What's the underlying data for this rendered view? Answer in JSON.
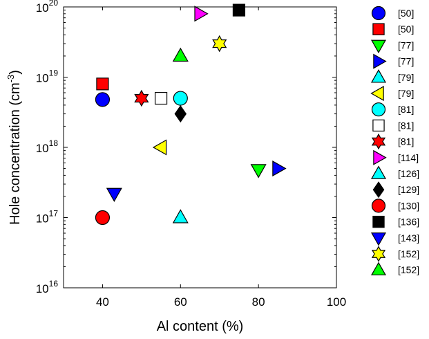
{
  "chart_data": {
    "type": "scatter",
    "title": "",
    "xlabel": "Al content (%)",
    "ylabel": {
      "text": "Hole concentration (cm",
      "superscript": "-3",
      "suffix": ")"
    },
    "xlim": [
      30,
      100
    ],
    "ylim": [
      1e+16,
      1e+20
    ],
    "yscale": "log",
    "grid": false,
    "legend_position": "right",
    "x_ticks": [
      {
        "value": 40,
        "label": "40"
      },
      {
        "value": 60,
        "label": "60"
      },
      {
        "value": 80,
        "label": "80"
      },
      {
        "value": 100,
        "label": "100"
      }
    ],
    "y_ticks": [
      {
        "value": 1e+16,
        "base": "10",
        "exp": "16"
      },
      {
        "value": 1e+17,
        "base": "10",
        "exp": "17"
      },
      {
        "value": 1e+18,
        "base": "10",
        "exp": "18"
      },
      {
        "value": 1e+19,
        "base": "10",
        "exp": "19"
      },
      {
        "value": 1e+20,
        "base": "10",
        "exp": "20"
      }
    ],
    "series": [
      {
        "name": "[50]",
        "marker": "circle",
        "color": "#0000ff",
        "points": [
          [
            40,
            4.8e+18
          ]
        ]
      },
      {
        "name": "[50]",
        "marker": "square",
        "color": "#ff0000",
        "points": [
          [
            40,
            8e+18
          ]
        ]
      },
      {
        "name": "[77]",
        "marker": "triangle-down",
        "color": "#00ff00",
        "points": [
          [
            80,
            4.8e+17
          ]
        ]
      },
      {
        "name": "[77]",
        "marker": "triangle-right",
        "color": "#0000ff",
        "points": [
          [
            85,
            5e+17
          ]
        ]
      },
      {
        "name": "[79]",
        "marker": "triangle-up",
        "color": "#00ffff",
        "points": [
          [
            60,
            1e+17
          ]
        ]
      },
      {
        "name": "[79]",
        "marker": "triangle-left",
        "color": "#ffff00",
        "points": [
          [
            55,
            1e+18
          ]
        ]
      },
      {
        "name": "[81]",
        "marker": "circle",
        "color": "#00ffff",
        "points": [
          [
            60,
            5e+18
          ]
        ]
      },
      {
        "name": "[81]",
        "marker": "square",
        "color": "#ffffff",
        "points": [
          [
            55,
            5e+18
          ]
        ]
      },
      {
        "name": "[81]",
        "marker": "hexagram",
        "color": "#ff0000",
        "points": [
          [
            50,
            5e+18
          ]
        ]
      },
      {
        "name": "[114]",
        "marker": "triangle-right",
        "color": "#ff00ff",
        "points": [
          [
            65,
            8e+19
          ]
        ]
      },
      {
        "name": "[126]",
        "marker": "triangle-up",
        "color": "#00ffff",
        "points": []
      },
      {
        "name": "[129]",
        "marker": "diamond",
        "color": "#000000",
        "points": [
          [
            60,
            3e+18
          ]
        ]
      },
      {
        "name": "[130]",
        "marker": "circle",
        "color": "#ff0000",
        "points": [
          [
            40,
            1e+17
          ]
        ]
      },
      {
        "name": "[136]",
        "marker": "square",
        "color": "#000000",
        "points": [
          [
            75,
            9e+19
          ]
        ]
      },
      {
        "name": "[143]",
        "marker": "triangle-down",
        "color": "#0000ff",
        "points": [
          [
            43,
            2.2e+17
          ]
        ]
      },
      {
        "name": "[152]",
        "marker": "hexagram",
        "color": "#ffff00",
        "points": [
          [
            70,
            3e+19
          ]
        ]
      },
      {
        "name": "[152]",
        "marker": "triangle-up",
        "color": "#00ff00",
        "points": [
          [
            60,
            2e+19
          ]
        ]
      }
    ]
  }
}
